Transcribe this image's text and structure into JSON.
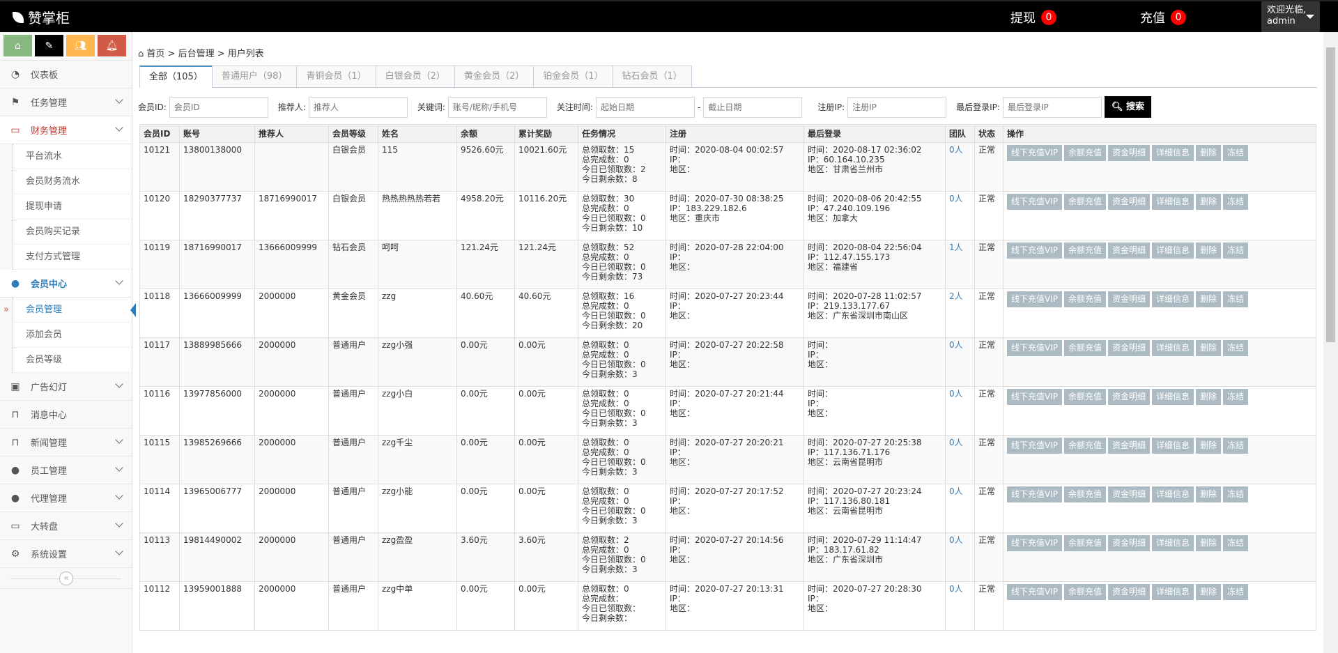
{
  "header": {
    "logo": "赞掌柜",
    "withdraw_label": "提现",
    "withdraw_count": "0",
    "recharge_label": "充值",
    "recharge_count": "0",
    "welcome": "欢迎光临,",
    "username": "admin"
  },
  "sidebar": {
    "shortcuts": [
      {
        "icon": "home-icon",
        "color": "#87b87f"
      },
      {
        "icon": "pencil-icon",
        "color": "#000000"
      },
      {
        "icon": "users-icon",
        "color": "#ffb752"
      },
      {
        "icon": "bell-icon",
        "color": "#d15b47"
      }
    ],
    "items": [
      {
        "label": "仪表板",
        "icon": "dashboard-icon"
      },
      {
        "label": "任务管理",
        "icon": "flag-icon",
        "chevron": true
      },
      {
        "label": "财务管理",
        "icon": "inbox-icon",
        "chevron": true,
        "state": "red",
        "children": [
          "平台流水",
          "会员财务流水",
          "提现申请",
          "会员购买记录",
          "支付方式管理"
        ]
      },
      {
        "label": "会员中心",
        "icon": "user-icon",
        "chevron": true,
        "state": "blue",
        "children": [
          "会员管理",
          "添加会员",
          "会员等级"
        ],
        "active_child": 0
      },
      {
        "label": "广告幻灯",
        "icon": "picture-icon",
        "chevron": true
      },
      {
        "label": "消息中心",
        "icon": "bookmark-icon"
      },
      {
        "label": "新闻管理",
        "icon": "bookmark-icon",
        "chevron": true
      },
      {
        "label": "员工管理",
        "icon": "user-icon",
        "chevron": true
      },
      {
        "label": "代理管理",
        "icon": "user-icon",
        "chevron": true
      },
      {
        "label": "大转盘",
        "icon": "hdd-icon",
        "chevron": true
      },
      {
        "label": "系统设置",
        "icon": "gear-icon",
        "chevron": true
      }
    ]
  },
  "breadcrumb": [
    "首页",
    "后台管理",
    "用户列表"
  ],
  "tabs": [
    "全部（105）",
    "普通用户（98）",
    "青铜会员（1）",
    "白银会员（2）",
    "黄金会员（2）",
    "铂金会员（1）",
    "钻石会员（1）"
  ],
  "filters": {
    "member_id_label": "会员ID:",
    "member_id_ph": "会员ID",
    "referrer_label": "推荐人:",
    "referrer_ph": "推荐人",
    "keyword_label": "关键词:",
    "keyword_ph": "账号/昵称/手机号",
    "time_label": "关注时间:",
    "start_ph": "起始日期",
    "end_ph": "截止日期",
    "reg_ip_label": "注册IP:",
    "reg_ip_ph": "注册IP",
    "last_ip_label": "最后登录IP:",
    "last_ip_ph": "最后登录IP",
    "search": "搜索"
  },
  "table": {
    "columns": [
      "会员ID",
      "账号",
      "推荐人",
      "会员等级",
      "姓名",
      "余额",
      "累计奖励",
      "任务情况",
      "注册",
      "最后登录",
      "团队",
      "状态",
      "操作"
    ],
    "task_labels": [
      "总领取数：",
      "总完成数：",
      "今日已领取数：",
      "今日剩余数："
    ],
    "reg_labels": [
      "时间：",
      "IP：",
      "地区："
    ],
    "actions": [
      "线下充值VIP",
      "余额充值",
      "资金明细",
      "详细信息",
      "删除",
      "冻结"
    ],
    "rows": [
      {
        "id": "10121",
        "account": "13800138000",
        "referrer": "",
        "level": "白银会员",
        "name": "115",
        "balance": "9526.60元",
        "reward": "10021.60元",
        "tasks": [
          "15",
          "0",
          "2",
          "8"
        ],
        "reg": [
          "2020-08-04 00:02:57",
          "",
          ""
        ],
        "last": [
          "2020-08-17 02:36:02",
          "60.164.10.235",
          "甘肃省兰州市"
        ],
        "team": "0人",
        "status": "正常"
      },
      {
        "id": "10120",
        "account": "18290377737",
        "referrer": "18716990017",
        "level": "白银会员",
        "name": "热热热热热若若",
        "balance": "4958.20元",
        "reward": "10116.20元",
        "tasks": [
          "30",
          "0",
          "0",
          "10"
        ],
        "reg": [
          "2020-07-30 08:38:25",
          "183.229.182.6",
          "重庆市"
        ],
        "last": [
          "2020-08-06 20:42:55",
          "47.240.109.196",
          "加拿大"
        ],
        "team": "0人",
        "status": "正常"
      },
      {
        "id": "10119",
        "account": "18716990017",
        "referrer": "13666009999",
        "level": "钻石会员",
        "name": "呵呵",
        "balance": "121.24元",
        "reward": "121.24元",
        "tasks": [
          "52",
          "0",
          "0",
          "73"
        ],
        "reg": [
          "2020-07-28 22:04:00",
          "",
          ""
        ],
        "last": [
          "2020-08-04 22:56:04",
          "112.47.155.173",
          "福建省"
        ],
        "team": "1人",
        "status": "正常"
      },
      {
        "id": "10118",
        "account": "13666009999",
        "referrer": "2000000",
        "level": "黄金会员",
        "name": "zzg",
        "balance": "40.60元",
        "reward": "40.60元",
        "tasks": [
          "16",
          "0",
          "0",
          "20"
        ],
        "reg": [
          "2020-07-27 20:23:44",
          "",
          ""
        ],
        "last": [
          "2020-07-28 11:02:57",
          "219.133.177.67",
          "广东省深圳市南山区"
        ],
        "team": "2人",
        "status": "正常"
      },
      {
        "id": "10117",
        "account": "13889985666",
        "referrer": "2000000",
        "level": "普通用户",
        "name": "zzg小强",
        "balance": "0.00元",
        "reward": "0.00元",
        "tasks": [
          "0",
          "0",
          "0",
          "3"
        ],
        "reg": [
          "2020-07-27 20:22:58",
          "",
          ""
        ],
        "last": [
          "",
          "",
          ""
        ],
        "team": "0人",
        "status": "正常"
      },
      {
        "id": "10116",
        "account": "13977856000",
        "referrer": "2000000",
        "level": "普通用户",
        "name": "zzg小白",
        "balance": "0.00元",
        "reward": "0.00元",
        "tasks": [
          "0",
          "0",
          "0",
          "3"
        ],
        "reg": [
          "2020-07-27 20:21:44",
          "",
          ""
        ],
        "last": [
          "",
          "",
          ""
        ],
        "team": "0人",
        "status": "正常"
      },
      {
        "id": "10115",
        "account": "13985269666",
        "referrer": "2000000",
        "level": "普通用户",
        "name": "zzg千尘",
        "balance": "0.00元",
        "reward": "0.00元",
        "tasks": [
          "0",
          "0",
          "0",
          "3"
        ],
        "reg": [
          "2020-07-27 20:20:21",
          "",
          ""
        ],
        "last": [
          "2020-07-27 20:25:38",
          "117.136.71.176",
          "云南省昆明市"
        ],
        "team": "0人",
        "status": "正常"
      },
      {
        "id": "10114",
        "account": "13965006777",
        "referrer": "2000000",
        "level": "普通用户",
        "name": "zzg小能",
        "balance": "0.00元",
        "reward": "0.00元",
        "tasks": [
          "0",
          "0",
          "0",
          "3"
        ],
        "reg": [
          "2020-07-27 20:17:52",
          "",
          ""
        ],
        "last": [
          "2020-07-27 20:23:24",
          "117.136.80.181",
          "云南省昆明市"
        ],
        "team": "0人",
        "status": "正常"
      },
      {
        "id": "10113",
        "account": "19814490002",
        "referrer": "2000000",
        "level": "普通用户",
        "name": "zzg盈盈",
        "balance": "3.60元",
        "reward": "3.60元",
        "tasks": [
          "2",
          "0",
          "0",
          "3"
        ],
        "reg": [
          "2020-07-27 20:14:56",
          "",
          ""
        ],
        "last": [
          "2020-07-29 11:14:47",
          "183.17.61.82",
          "广东省深圳市"
        ],
        "team": "0人",
        "status": "正常"
      },
      {
        "id": "10112",
        "account": "13959001888",
        "referrer": "2000000",
        "level": "普通用户",
        "name": "zzg中单",
        "balance": "0.00元",
        "reward": "0.00元",
        "tasks": [
          "0",
          "",
          "",
          ""
        ],
        "reg": [
          "2020-07-27 20:13:31",
          "",
          ""
        ],
        "last": [
          "2020-07-27 20:28:30",
          "",
          ""
        ],
        "team": "0人",
        "status": "正常"
      }
    ]
  }
}
